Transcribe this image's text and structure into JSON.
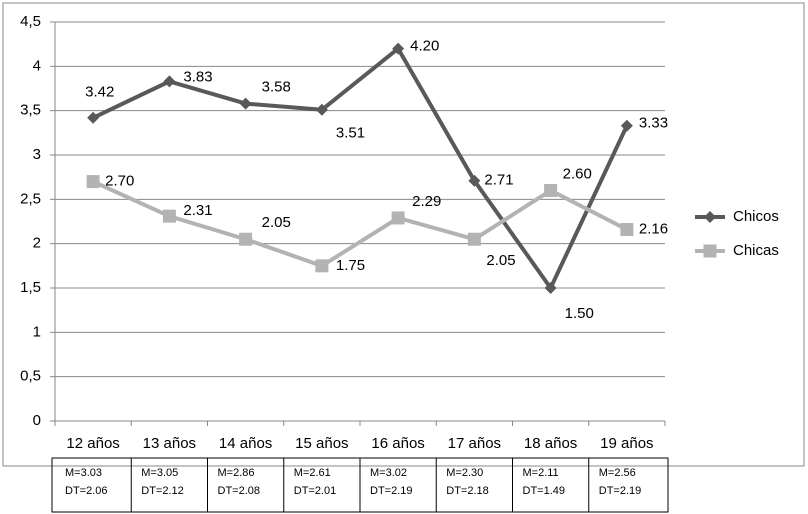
{
  "chart_data": {
    "type": "line",
    "categories": [
      "12 años",
      "13 años",
      "14 años",
      "15 años",
      "16 años",
      "17 años",
      "18 años",
      "19 años"
    ],
    "series": [
      {
        "name": "Chicos",
        "color": "#595959",
        "marker": "diamond",
        "values": [
          3.42,
          3.83,
          3.58,
          3.51,
          4.2,
          2.71,
          1.5,
          3.33
        ],
        "value_labels": [
          "3.42",
          "3.83",
          "3.58",
          "3.51",
          "4.20",
          "2.71",
          "1.50",
          "3.33"
        ]
      },
      {
        "name": "Chicas",
        "color": "#b3b3b3",
        "marker": "square",
        "values": [
          2.7,
          2.31,
          2.05,
          1.75,
          2.29,
          2.05,
          2.6,
          2.16
        ],
        "value_labels": [
          "2.70",
          "2.31",
          "2.05",
          "1.75",
          "2.29",
          "2.05",
          "2.60",
          "2.16"
        ]
      }
    ],
    "ylim": [
      0,
      4.5
    ],
    "yticks": [
      0,
      {
        "value": 0.5,
        "label": "0,5"
      },
      1,
      {
        "value": 1.5,
        "label": "1,5"
      },
      2,
      {
        "value": 2.5,
        "label": "2,5"
      },
      3,
      {
        "value": 3.5,
        "label": "3,5"
      },
      4,
      {
        "value": 4.5,
        "label": "4,5"
      }
    ],
    "grid": true,
    "legend": "right",
    "table": [
      [
        "M=3.03",
        "DT=2.06"
      ],
      [
        "M=3.05",
        "DT=2.12"
      ],
      [
        "M=2.86",
        "DT=2.08"
      ],
      [
        "M=2.61",
        "DT=2.01"
      ],
      [
        "M=3.02",
        "DT=2.19"
      ],
      [
        "M=2.30",
        "DT=2.18"
      ],
      [
        "M=2.11",
        "DT=1.49"
      ],
      [
        "M=2.56",
        "DT=2.19"
      ]
    ]
  }
}
